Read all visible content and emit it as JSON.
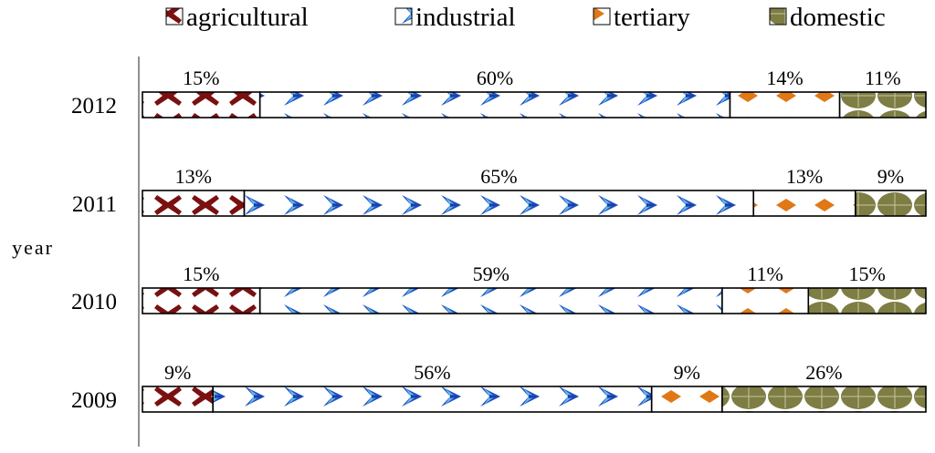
{
  "chart_data": {
    "type": "bar",
    "orientation": "horizontal",
    "stacked": "100%",
    "ylabel": "year",
    "categories": [
      "2012",
      "2011",
      "2010",
      "2009"
    ],
    "series": [
      {
        "name": "agricultural",
        "values": [
          15,
          13,
          15,
          9
        ],
        "color": "#7a1010",
        "pattern": "cross"
      },
      {
        "name": "industrial",
        "values": [
          60,
          65,
          59,
          56
        ],
        "color": "#2b63c8",
        "pattern": "chevron"
      },
      {
        "name": "tertiary",
        "values": [
          14,
          13,
          11,
          9
        ],
        "color": "#e07816",
        "pattern": "diamond"
      },
      {
        "name": "domestic",
        "values": [
          11,
          9,
          15,
          26
        ],
        "color": "#7d7d44",
        "pattern": "disc"
      }
    ],
    "data_labels": [
      [
        "15%",
        "60%",
        "14%",
        "11%"
      ],
      [
        "13%",
        "65%",
        "13%",
        "9%"
      ],
      [
        "15%",
        "59%",
        "11%",
        "15%"
      ],
      [
        "9%",
        "56%",
        "9%",
        "26%"
      ]
    ],
    "legend_position": "top",
    "grid": false
  }
}
